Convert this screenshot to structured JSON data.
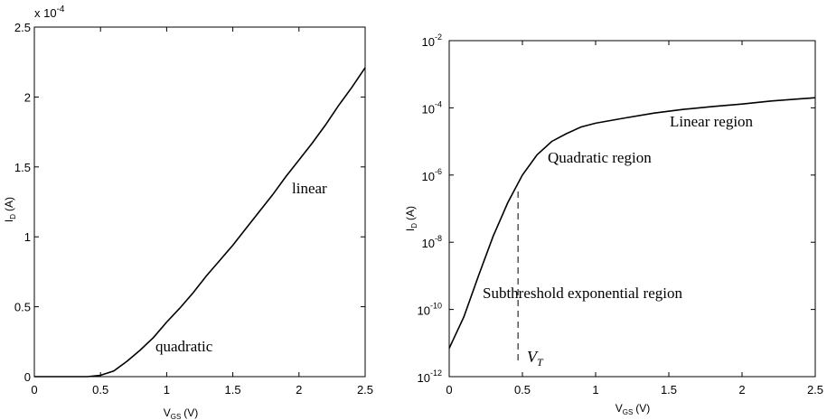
{
  "chart_data": [
    {
      "type": "line",
      "xlabel": "V",
      "xlabel_sub": "GS",
      "xlabel_unit": "(V)",
      "ylabel": "I",
      "ylabel_sub": "D",
      "ylabel_unit": "(A)",
      "y_exponent_label": "x 10",
      "y_exponent_power": "-4",
      "xlim": [
        0,
        2.5
      ],
      "ylim": [
        0,
        2.5
      ],
      "x_ticks": [
        "0",
        "0.5",
        "1",
        "1.5",
        "2",
        "2.5"
      ],
      "y_ticks": [
        "0",
        "0.5",
        "1",
        "1.5",
        "2",
        "2.5"
      ],
      "annotations": [
        "quadratic",
        "linear"
      ],
      "series": [
        {
          "x": [
            0,
            0.2,
            0.4,
            0.5,
            0.6,
            0.7,
            0.8,
            0.9,
            1.0,
            1.1,
            1.2,
            1.3,
            1.4,
            1.5,
            1.6,
            1.7,
            1.8,
            1.9,
            2.0,
            2.1,
            2.2,
            2.3,
            2.4,
            2.5
          ],
          "y": [
            0,
            0,
            0,
            0.01,
            0.04,
            0.11,
            0.19,
            0.28,
            0.39,
            0.49,
            0.6,
            0.72,
            0.83,
            0.94,
            1.06,
            1.18,
            1.3,
            1.43,
            1.55,
            1.67,
            1.8,
            1.94,
            2.07,
            2.21
          ]
        }
      ]
    },
    {
      "type": "line",
      "log_y": true,
      "xlabel": "V",
      "xlabel_sub": "GS",
      "xlabel_unit": "(V)",
      "ylabel": "I",
      "ylabel_sub": "D",
      "ylabel_unit": "(A)",
      "xlim": [
        0,
        2.5
      ],
      "ylim": [
        1e-12,
        0.01
      ],
      "x_ticks": [
        "0",
        "0.5",
        "1",
        "1.5",
        "2",
        "2.5"
      ],
      "y_ticks": [
        {
          "base": "10",
          "exp": "-12"
        },
        {
          "base": "10",
          "exp": "-10"
        },
        {
          "base": "10",
          "exp": "-8"
        },
        {
          "base": "10",
          "exp": "-6"
        },
        {
          "base": "10",
          "exp": "-4"
        },
        {
          "base": "10",
          "exp": "-2"
        }
      ],
      "annotations": [
        "Linear region",
        "Quadratic region",
        "Subthreshold exponential region"
      ],
      "threshold_label": "V",
      "threshold_label_sub": "T",
      "threshold_x": 0.47,
      "series": [
        {
          "x": [
            0,
            0.1,
            0.2,
            0.3,
            0.4,
            0.5,
            0.6,
            0.7,
            0.8,
            0.9,
            1.0,
            1.2,
            1.4,
            1.6,
            1.8,
            2.0,
            2.2,
            2.5
          ],
          "y": [
            7e-12,
            6e-11,
            1e-09,
            1.5e-08,
            1.5e-07,
            1e-06,
            4e-06,
            1e-05,
            1.7e-05,
            2.7e-05,
            3.5e-05,
            5e-05,
            7e-05,
            9e-05,
            0.00011,
            0.00013,
            0.00016,
            0.0002
          ]
        }
      ]
    }
  ]
}
